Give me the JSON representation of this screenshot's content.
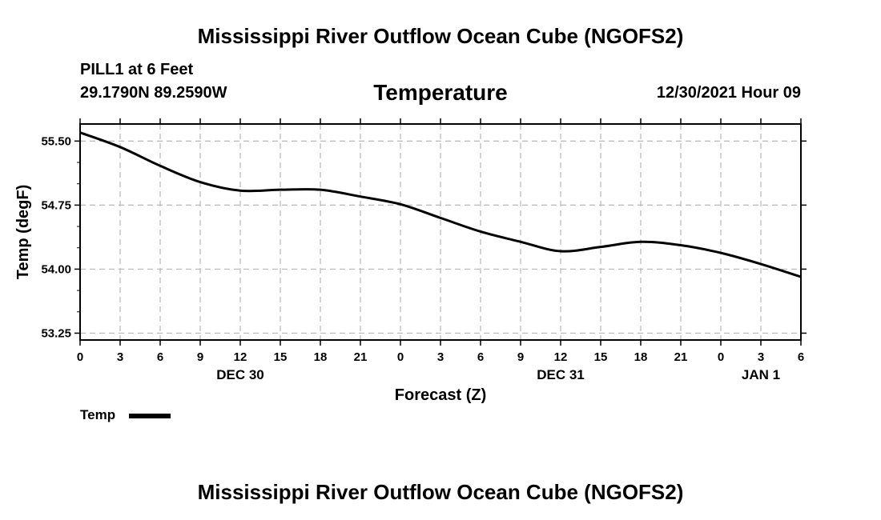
{
  "header": {
    "title": "Mississippi River Outflow Ocean Cube (NGOFS2)",
    "station": "PILL1 at 6 Feet",
    "coordinates": "29.1790N  89.2590W",
    "variable": "Temperature",
    "datetime": "12/30/2021 Hour 09"
  },
  "footer": {
    "title": "Mississippi River Outflow Ocean Cube (NGOFS2)"
  },
  "legend": {
    "label": "Temp",
    "color": "#000000"
  },
  "chart_data": {
    "type": "line",
    "title": "Temperature",
    "xlabel": "Forecast (Z)",
    "ylabel": "Temp (degF)",
    "xlim": [
      0,
      54
    ],
    "ylim": [
      53.17,
      55.7
    ],
    "yticks": [
      53.25,
      54.0,
      54.75,
      55.5
    ],
    "ytick_labels": [
      "53.25",
      "54.00",
      "54.75",
      "55.50"
    ],
    "xtick_labels": [
      "0",
      "3",
      "6",
      "9",
      "12",
      "15",
      "18",
      "21",
      "0",
      "3",
      "6",
      "9",
      "12",
      "15",
      "18",
      "21",
      "0",
      "3",
      "6"
    ],
    "date_labels": [
      {
        "text": "DEC 30",
        "hour": 12
      },
      {
        "text": "DEC 31",
        "hour": 36
      },
      {
        "text": "JAN 1",
        "hour": 51
      }
    ],
    "grid": true,
    "series": [
      {
        "name": "Temp",
        "color": "#000000",
        "x": [
          0,
          3,
          6,
          9,
          12,
          15,
          18,
          21,
          24,
          27,
          30,
          33,
          36,
          39,
          42,
          45,
          48,
          51,
          54
        ],
        "values": [
          55.6,
          55.43,
          55.21,
          55.02,
          54.92,
          54.93,
          54.93,
          54.85,
          54.76,
          54.6,
          54.44,
          54.32,
          54.21,
          54.26,
          54.32,
          54.28,
          54.19,
          54.06,
          53.91
        ]
      }
    ]
  }
}
